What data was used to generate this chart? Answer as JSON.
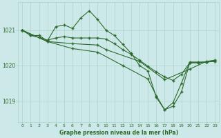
{
  "title": "Graphe pression niveau de la mer (hPa)",
  "bg_color": "#cce8e8",
  "grid_color": "#aad4c8",
  "line_color": "#2d6a2d",
  "marker_color": "#2d6a2d",
  "xlim": [
    -0.5,
    23.5
  ],
  "ylim": [
    1018.4,
    1021.8
  ],
  "yticks": [
    1019,
    1020,
    1021
  ],
  "xticks": [
    0,
    1,
    2,
    3,
    4,
    5,
    6,
    7,
    8,
    9,
    10,
    11,
    12,
    13,
    14,
    15,
    16,
    17,
    18,
    19,
    20,
    21,
    22,
    23
  ],
  "series": [
    {
      "x": [
        0,
        1,
        2,
        3,
        4,
        5,
        6,
        7,
        8,
        9,
        10,
        11,
        12,
        13,
        14,
        15,
        16,
        17,
        18,
        19,
        20,
        21,
        22,
        23
      ],
      "y": [
        1021.0,
        1020.85,
        1020.85,
        1020.7,
        1021.1,
        1021.15,
        1021.05,
        1021.35,
        1021.55,
        1021.3,
        1021.0,
        1020.85,
        1020.6,
        1020.35,
        1020.0,
        1019.85,
        1019.1,
        1018.75,
        1018.95,
        1019.5,
        1020.1,
        1020.1,
        1020.1,
        1020.15
      ]
    },
    {
      "x": [
        0,
        1,
        2,
        3,
        4,
        5,
        6,
        7,
        8,
        9,
        10,
        11,
        12,
        13,
        14,
        15,
        16,
        17,
        18,
        19,
        20,
        21,
        22,
        23
      ],
      "y": [
        1021.0,
        1020.85,
        1020.8,
        1020.72,
        1020.78,
        1020.82,
        1020.78,
        1020.78,
        1020.78,
        1020.78,
        1020.75,
        1020.62,
        1020.45,
        1020.32,
        1020.15,
        1019.98,
        1019.82,
        1019.68,
        1019.58,
        1019.75,
        1020.08,
        1020.08,
        1020.1,
        1020.12
      ]
    },
    {
      "x": [
        0,
        3,
        6,
        9,
        10,
        14,
        17,
        20,
        22,
        23
      ],
      "y": [
        1021.0,
        1020.68,
        1020.62,
        1020.58,
        1020.45,
        1020.12,
        1019.6,
        1019.9,
        1020.12,
        1020.15
      ]
    },
    {
      "x": [
        0,
        3,
        6,
        9,
        12,
        15,
        16,
        17,
        18,
        19,
        20,
        21,
        22,
        23
      ],
      "y": [
        1021.0,
        1020.68,
        1020.48,
        1020.38,
        1020.0,
        1019.62,
        1019.15,
        1018.75,
        1018.85,
        1019.25,
        1020.08,
        1020.08,
        1020.1,
        1020.12
      ]
    }
  ]
}
